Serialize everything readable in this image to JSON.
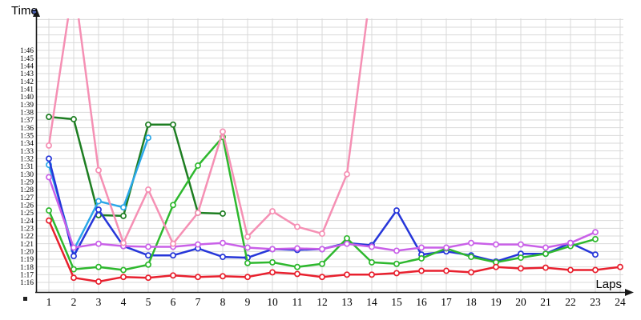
{
  "page": {
    "background": "#ffffff"
  },
  "labels": {
    "y_axis_title": "Time",
    "x_axis_title": "Laps"
  },
  "axis_style": {
    "axis_color": "#1a1a1a",
    "grid_color": "#d9d9d9",
    "tick_color": "#000000"
  },
  "y_ticks": [
    "1:46",
    "1:45",
    "1:44",
    "1:43",
    "1:42",
    "1:41",
    "1:40",
    "1:39",
    "1:38",
    "1:37",
    "1:36",
    "1:35",
    "1:34",
    "1:33",
    "1:32",
    "1:31",
    "1:30",
    "1:29",
    "1:28",
    "1:27",
    "1:26",
    "1:25",
    "1:24",
    "1:23",
    "1:22",
    "1:21",
    "1:20",
    "1:19",
    "1:18",
    "1:17",
    "1:16"
  ],
  "x_ticks": [
    "1",
    "2",
    "3",
    "4",
    "5",
    "6",
    "7",
    "8",
    "9",
    "10",
    "11",
    "12",
    "13",
    "14",
    "15",
    "16",
    "17",
    "18",
    "19",
    "20",
    "21",
    "22",
    "23",
    "24"
  ],
  "chart_data": {
    "type": "line",
    "title": "",
    "xlabel": "Laps",
    "ylabel": "Time",
    "grid": true,
    "legend": false,
    "marker": "open-circle",
    "x": [
      1,
      2,
      3,
      4,
      5,
      6,
      7,
      8,
      9,
      10,
      11,
      12,
      13,
      14,
      15,
      16,
      17,
      18,
      19,
      20,
      21,
      22,
      23,
      24
    ],
    "y_tick_min": "1:16",
    "y_tick_max": "1:46",
    "values_unit": "lap time in seconds (76 = 1:16)",
    "series": [
      {
        "id": "dark-green",
        "color": "#1e7e22",
        "values_sec": [
          97.4,
          97.1,
          84.7,
          84.6,
          96.4,
          96.4,
          85.0,
          84.9,
          null,
          null,
          null,
          null,
          null,
          null,
          null,
          null,
          null,
          null,
          null,
          null,
          null,
          null,
          null,
          null
        ]
      },
      {
        "id": "cyan",
        "color": "#2aa7e8",
        "values_sec": [
          91.2,
          80.2,
          86.5,
          85.7,
          94.7,
          null,
          null,
          null,
          null,
          null,
          null,
          null,
          null,
          null,
          null,
          null,
          null,
          null,
          null,
          null,
          null,
          null,
          null,
          null
        ]
      },
      {
        "id": "blue",
        "color": "#2636d9",
        "values_sec": [
          92.0,
          79.4,
          85.4,
          80.7,
          79.5,
          79.5,
          80.4,
          79.3,
          79.2,
          80.3,
          80.2,
          80.3,
          81.1,
          80.8,
          85.3,
          79.6,
          80.0,
          79.5,
          78.7,
          79.7,
          79.7,
          81.1,
          79.6,
          null
        ]
      },
      {
        "id": "green",
        "color": "#2eb82e",
        "values_sec": [
          85.3,
          77.7,
          78.0,
          77.6,
          78.3,
          86.0,
          91.1,
          94.8,
          78.5,
          78.6,
          78.0,
          78.4,
          81.7,
          78.6,
          78.4,
          79.1,
          80.4,
          79.3,
          78.6,
          79.2,
          79.7,
          80.7,
          81.6,
          null
        ]
      },
      {
        "id": "violet",
        "color": "#c960e8",
        "values_sec": [
          89.6,
          80.5,
          81.0,
          80.7,
          80.6,
          80.6,
          80.9,
          81.1,
          80.5,
          80.3,
          80.4,
          80.3,
          81.0,
          80.6,
          80.1,
          80.5,
          80.5,
          81.1,
          80.9,
          80.9,
          80.5,
          81.1,
          82.5,
          null
        ]
      },
      {
        "id": "pink",
        "color": "#f590b4",
        "off_chart_laps": [
          2,
          14
        ],
        "values_sec": [
          93.7,
          115,
          90.5,
          81.1,
          88.0,
          81.0,
          85.0,
          95.5,
          81.9,
          85.2,
          83.2,
          82.3,
          90.0,
          115,
          null,
          null,
          null,
          null,
          null,
          null,
          null,
          null,
          null,
          null
        ]
      },
      {
        "id": "red",
        "color": "#e8202e",
        "values_sec": [
          84.0,
          76.6,
          76.1,
          76.7,
          76.6,
          76.9,
          76.7,
          76.8,
          76.7,
          77.3,
          77.1,
          76.7,
          77.0,
          77.0,
          77.2,
          77.5,
          77.5,
          77.3,
          78.0,
          77.8,
          77.9,
          77.6,
          77.6,
          78.0
        ]
      }
    ]
  }
}
